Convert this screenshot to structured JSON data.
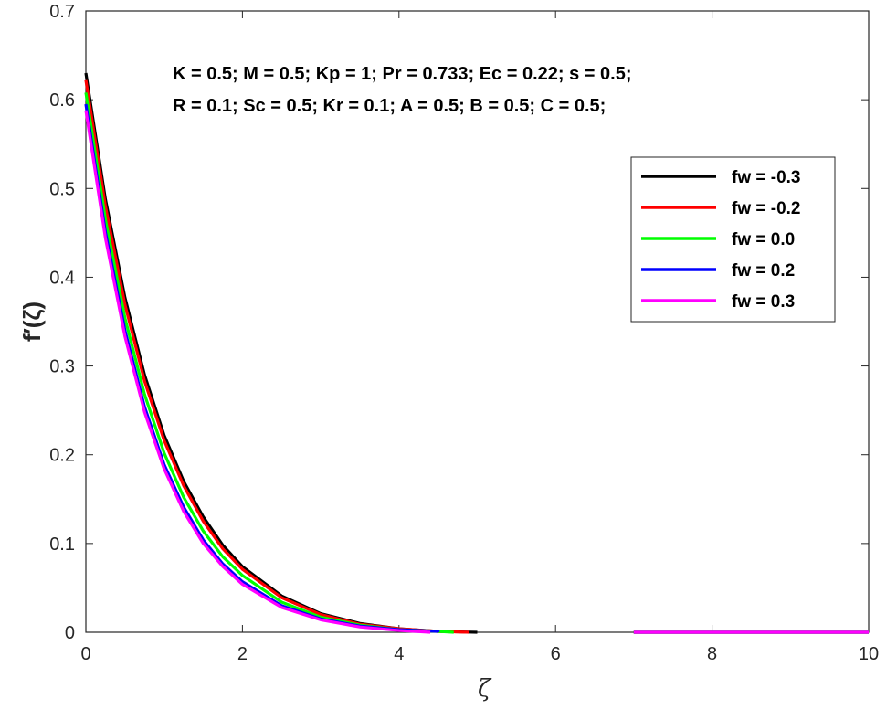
{
  "chart_data": {
    "type": "line",
    "xlabel": "ζ",
    "ylabel": "f′(ζ)",
    "xlim": [
      0,
      10
    ],
    "ylim": [
      0,
      0.7
    ],
    "xticks": [
      "0",
      "2",
      "4",
      "6",
      "8",
      "10"
    ],
    "yticks": [
      "0",
      "0.1",
      "0.2",
      "0.3",
      "0.4",
      "0.5",
      "0.6",
      "0.7"
    ],
    "grid": false,
    "legend_position": "top-right",
    "annotation": [
      "K = 0.5; M = 0.5; Kp = 1; Pr = 0.733; Ec = 0.22; s = 0.5;",
      "R = 0.1; Sc = 0.5; Kr = 0.1; A = 0.5; B = 0.5; C = 0.5;"
    ],
    "x": [
      0,
      0.25,
      0.5,
      0.75,
      1.0,
      1.25,
      1.5,
      1.75,
      2.0,
      2.5,
      3.0,
      3.5,
      4.0,
      4.5,
      5.0
    ],
    "series": [
      {
        "name": "fw = -0.3",
        "color": "#000000",
        "x_end": 5.0,
        "tail_start": 7.0,
        "values": [
          0.63,
          0.488,
          0.377,
          0.29,
          0.222,
          0.17,
          0.13,
          0.098,
          0.074,
          0.041,
          0.021,
          0.01,
          0.004,
          0.001,
          0.0
        ]
      },
      {
        "name": "fw = -0.2",
        "color": "#ff0000",
        "x_end": 4.9,
        "tail_start": 7.0,
        "values": [
          0.622,
          0.48,
          0.369,
          0.283,
          0.216,
          0.165,
          0.125,
          0.094,
          0.071,
          0.039,
          0.02,
          0.009,
          0.004,
          0.001,
          0.0
        ]
      },
      {
        "name": "fw = 0.0",
        "color": "#00ff00",
        "x_end": 4.7,
        "tail_start": 7.0,
        "values": [
          0.608,
          0.465,
          0.354,
          0.268,
          0.202,
          0.152,
          0.114,
          0.085,
          0.064,
          0.034,
          0.017,
          0.008,
          0.003,
          0.001,
          0.0
        ]
      },
      {
        "name": "fw = 0.2",
        "color": "#0000ff",
        "x_end": 4.5,
        "tail_start": 7.0,
        "values": [
          0.595,
          0.451,
          0.34,
          0.254,
          0.189,
          0.141,
          0.104,
          0.077,
          0.057,
          0.03,
          0.015,
          0.007,
          0.003,
          0.001,
          0.0
        ]
      },
      {
        "name": "fw = 0.3",
        "color": "#ff00ff",
        "x_end": 4.4,
        "tail_start": 7.0,
        "values": [
          0.588,
          0.444,
          0.333,
          0.248,
          0.184,
          0.136,
          0.1,
          0.074,
          0.054,
          0.028,
          0.014,
          0.006,
          0.002,
          0.001,
          0.0
        ]
      }
    ]
  }
}
